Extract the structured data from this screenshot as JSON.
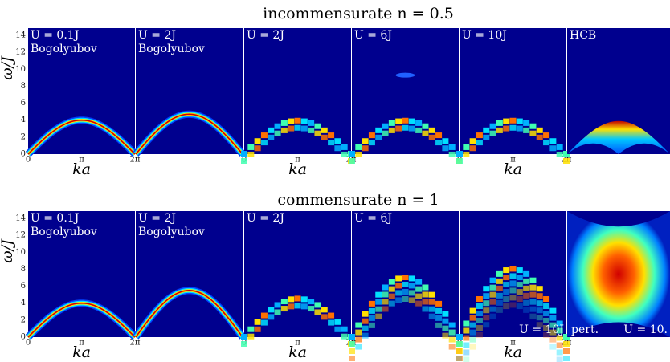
{
  "rows": [
    {
      "title": "incommensurate n = 0.5",
      "panels": [
        {
          "labels": [
            "U = 0.1J",
            "Bogolyubov"
          ]
        },
        {
          "labels": [
            "U = 2J",
            "Bogolyubov"
          ]
        },
        {
          "labels": [
            "U = 2J"
          ]
        },
        {
          "labels": [
            "U = 6J"
          ]
        },
        {
          "labels": [
            "U = 10J"
          ]
        },
        {
          "labels": [
            "HCB"
          ]
        }
      ]
    },
    {
      "title": "commensurate n = 1",
      "panels": [
        {
          "labels": [
            "U = 0.1J",
            "Bogolyubov"
          ]
        },
        {
          "labels": [
            "U = 2J",
            "Bogolyubov"
          ]
        },
        {
          "labels": [
            "U = 2J"
          ]
        },
        {
          "labels": [
            "U = 6J"
          ]
        },
        {
          "labels": [],
          "bottom_right": "U = 10J"
        },
        {
          "labels": [],
          "bottom_left": "pert.",
          "bottom_right": "U = 10."
        }
      ]
    }
  ],
  "yticks": [
    "0",
    "2",
    "4",
    "6",
    "8",
    "10",
    "12",
    "14"
  ],
  "xticks": [
    "0",
    "π",
    "2π"
  ],
  "xlabel": "ka",
  "ylabel": "ω/J"
}
